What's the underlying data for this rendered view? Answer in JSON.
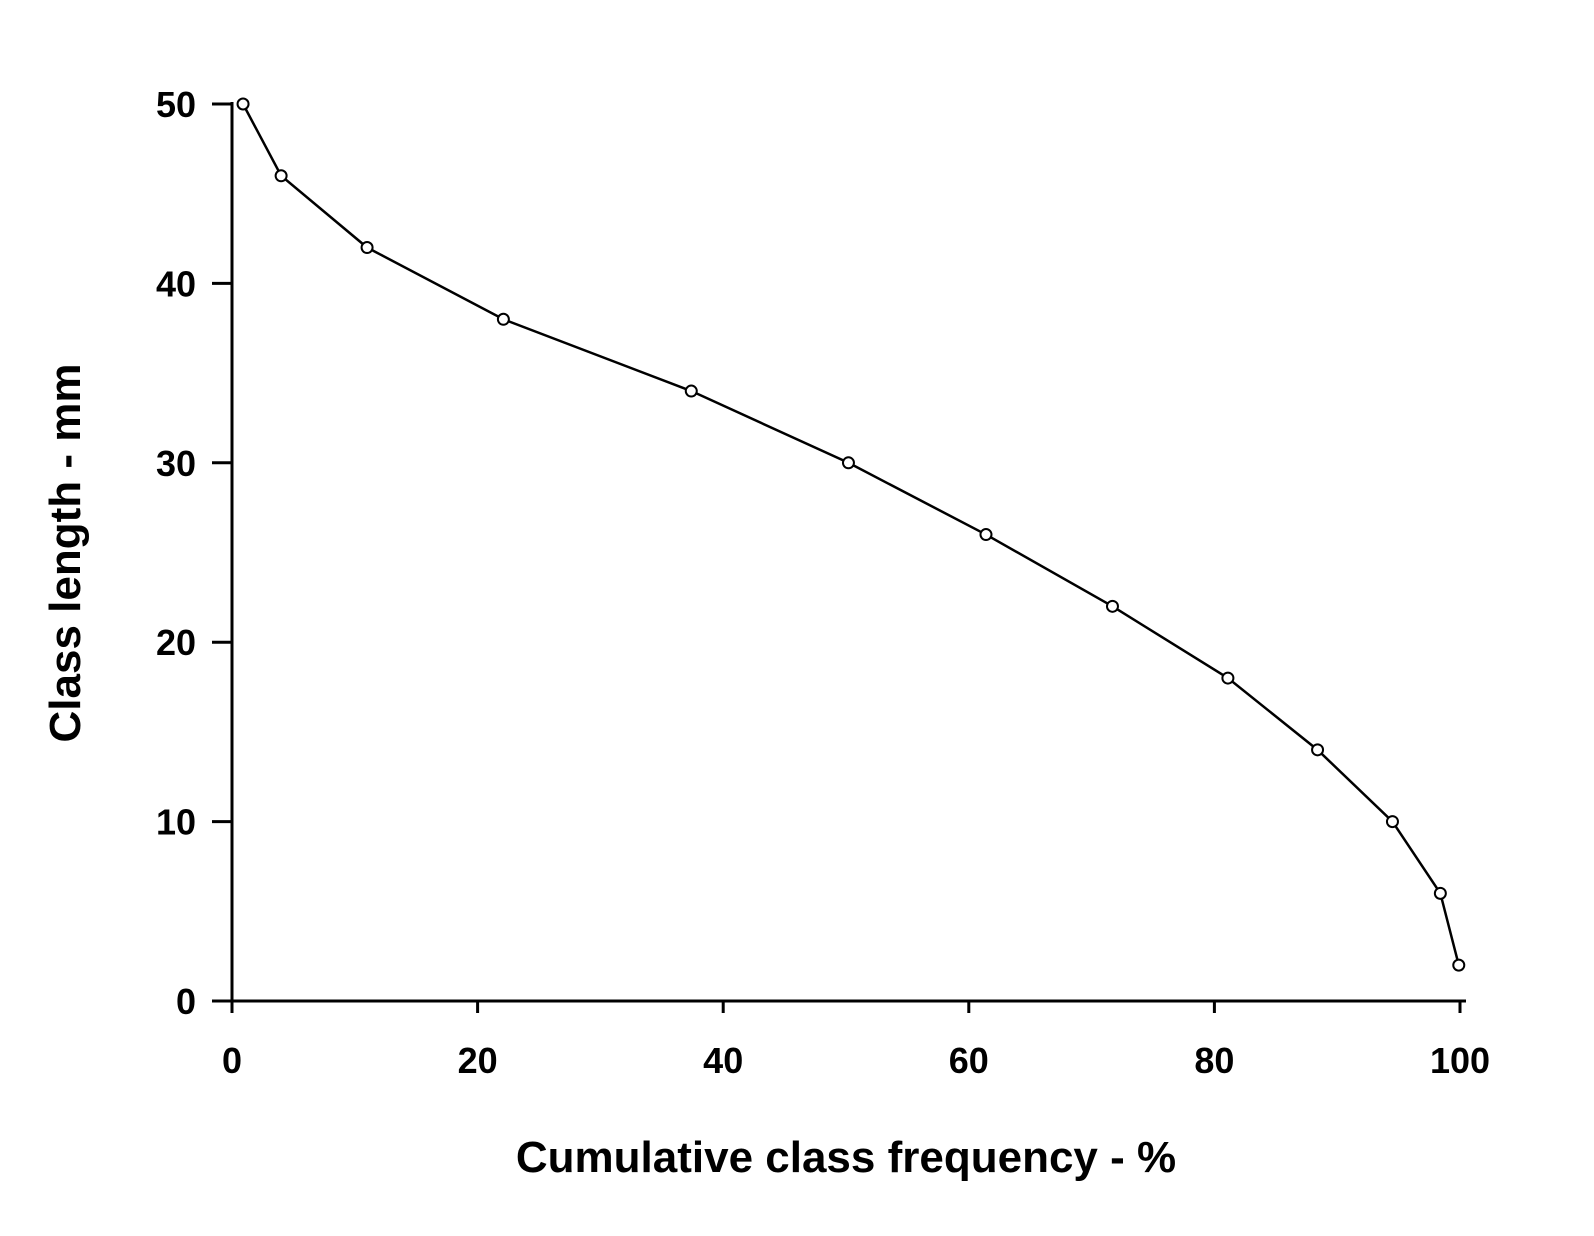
{
  "chart_data": {
    "type": "line",
    "title": "",
    "xlabel": "Cumulative class frequency - %",
    "ylabel": "Class length - mm",
    "xlim": [
      0,
      100
    ],
    "ylim": [
      0,
      50
    ],
    "xticks": [
      "0",
      "20",
      "40",
      "60",
      "80",
      "100"
    ],
    "yticks": [
      "0",
      "10",
      "20",
      "30",
      "40",
      "50"
    ],
    "grid": false,
    "series": [
      {
        "name": "Class length",
        "color": "#000000",
        "marker": "open-circle",
        "x": [
          0.9,
          4.0,
          11.0,
          22.1,
          37.4,
          50.2,
          61.4,
          71.7,
          81.1,
          88.4,
          94.5,
          98.4,
          99.9
        ],
        "y": [
          50,
          46,
          42,
          38,
          34,
          30,
          26,
          22,
          18,
          14,
          10,
          6,
          2
        ]
      }
    ]
  }
}
